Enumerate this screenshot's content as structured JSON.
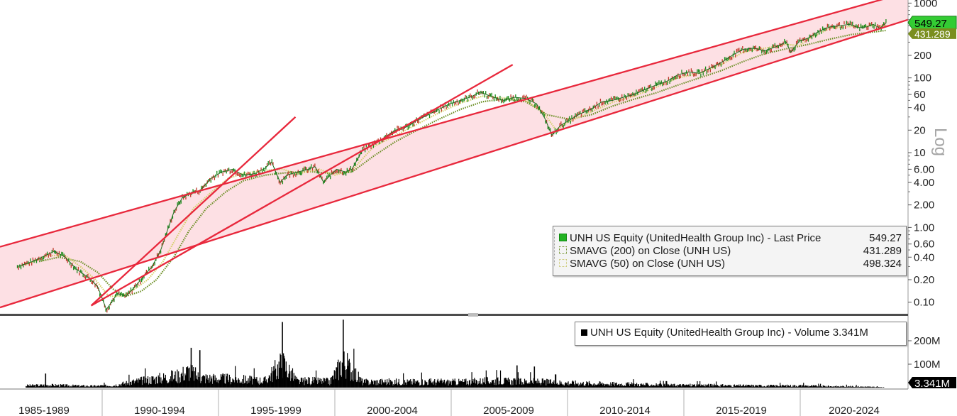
{
  "chart_data": {
    "type": "line",
    "y_scale": "log",
    "y_axis_label": "Log",
    "x_tick_labels": [
      "1985-1989",
      "1990-1994",
      "1995-1999",
      "2000-2004",
      "2005-2009",
      "2010-2014",
      "2015-2019",
      "2020-2024"
    ],
    "price_y_ticks": [
      "1000",
      "200",
      "100",
      "60",
      "40",
      "20",
      "10",
      "6.00",
      "4.00",
      "2.00",
      "1.00",
      "0.60",
      "0.40",
      "0.20",
      "0.10"
    ],
    "price_y_tick_values": [
      1000,
      200,
      100,
      60,
      40,
      20,
      10,
      6,
      4,
      2,
      1,
      0.6,
      0.4,
      0.2,
      0.1
    ],
    "volume_y_ticks": [
      "200M",
      "100M"
    ],
    "volume_y_tick_values": [
      200,
      100
    ],
    "last_price_label": "549.27",
    "sma200_label": "431.289",
    "last_volume_label": "3.341M",
    "series": [
      {
        "name": "UNH US Equity (UnitedHealth Group Inc) - Last Price",
        "value_label": "549.27",
        "color": "#2ca02c",
        "x": [
          1984.6,
          1985.3,
          1986.3,
          1986.8,
          1987.3,
          1988.0,
          1988.3,
          1988.7,
          1989.2,
          1989.6,
          1990.0,
          1990.4,
          1990.8,
          1991.2,
          1991.5,
          1991.8,
          1992.2,
          1992.7,
          1993.0,
          1993.5,
          1994.0,
          1994.5,
          1995.0,
          1995.5,
          1996.0,
          1996.3,
          1996.7,
          1997.0,
          1997.5,
          1998.0,
          1998.3,
          1998.7,
          1999.0,
          1999.3,
          1999.7,
          2000.0,
          2000.5,
          2001.0,
          2001.5,
          2002.0,
          2002.5,
          2003.0,
          2003.5,
          2004.0,
          2004.5,
          2005.0,
          2005.5,
          2005.9,
          2006.5,
          2007.0,
          2007.5,
          2008.0,
          2008.5,
          2008.9,
          2009.2,
          2009.6,
          2010.0,
          2010.5,
          2011.0,
          2011.5,
          2012.0,
          2012.5,
          2013.0,
          2013.5,
          2014.0,
          2014.5,
          2015.0,
          2015.5,
          2016.0,
          2016.5,
          2017.0,
          2017.5,
          2018.0,
          2018.5,
          2019.0,
          2019.5,
          2020.0,
          2020.2,
          2020.6,
          2021.0,
          2021.5,
          2022.0,
          2022.5,
          2022.9,
          2023.3,
          2023.7,
          2024.0,
          2024.3,
          2024.6
        ],
        "values": [
          0.3,
          0.35,
          0.48,
          0.4,
          0.28,
          0.2,
          0.16,
          0.08,
          0.13,
          0.12,
          0.16,
          0.22,
          0.3,
          0.5,
          0.9,
          1.6,
          2.5,
          3.0,
          3.1,
          4.5,
          5.5,
          6.0,
          5.0,
          5.2,
          6.2,
          7.5,
          4.0,
          5.0,
          5.5,
          6.0,
          6.5,
          4.0,
          5.0,
          6.0,
          5.5,
          6.0,
          11,
          13,
          16,
          20,
          22,
          27,
          32,
          38,
          45,
          50,
          56,
          65,
          55,
          50,
          55,
          53,
          45,
          28,
          17,
          23,
          27,
          33,
          38,
          48,
          50,
          55,
          60,
          70,
          80,
          90,
          110,
          120,
          115,
          135,
          160,
          200,
          240,
          250,
          230,
          260,
          300,
          220,
          310,
          340,
          420,
          480,
          500,
          520,
          470,
          480,
          520,
          460,
          549.27
        ]
      },
      {
        "name": "SMAVG (200) on Close (UNH US)",
        "value_label": "431.289",
        "color": "#6b8e23",
        "x": [
          1985.6,
          1986.5,
          1987.5,
          1988.3,
          1989.0,
          1989.6,
          1990.3,
          1991.0,
          1991.8,
          1992.5,
          1993.3,
          1994.2,
          1995.0,
          1996.0,
          1997.0,
          1998.0,
          1999.0,
          2000.0,
          2001.0,
          2002.0,
          2003.0,
          2004.0,
          2005.0,
          2006.0,
          2007.0,
          2008.0,
          2009.0,
          2010.0,
          2011.0,
          2012.0,
          2013.0,
          2014.0,
          2015.0,
          2016.0,
          2017.0,
          2018.0,
          2019.0,
          2020.0,
          2021.0,
          2022.0,
          2023.0,
          2024.0,
          2024.6
        ],
        "values": [
          0.35,
          0.4,
          0.35,
          0.25,
          0.15,
          0.12,
          0.14,
          0.2,
          0.4,
          0.9,
          1.8,
          3.0,
          4.2,
          5.0,
          5.4,
          5.6,
          5.3,
          5.5,
          9.0,
          14,
          20,
          28,
          38,
          48,
          52,
          48,
          32,
          28,
          32,
          42,
          52,
          63,
          80,
          100,
          125,
          165,
          210,
          245,
          280,
          330,
          380,
          410,
          431.289
        ]
      },
      {
        "name": "SMAVG (50) on Close (UNH US)",
        "value_label": "498.324",
        "color": "#d4d06a",
        "x": [
          1985.0,
          1986.0,
          1986.8,
          1987.5,
          1988.2,
          1988.8,
          1989.4,
          1990.0,
          1990.6,
          1991.3,
          1992.0,
          1992.7,
          1993.5,
          1994.3,
          1995.0,
          1996.0,
          1996.8,
          1997.5,
          1998.5,
          1999.2,
          2000.0,
          2001.0,
          2002.0,
          2003.0,
          2004.0,
          2005.0,
          2006.0,
          2007.0,
          2008.0,
          2008.8,
          2009.4,
          2010.0,
          2011.0,
          2012.0,
          2013.0,
          2014.0,
          2015.0,
          2016.0,
          2017.0,
          2018.0,
          2019.0,
          2020.0,
          2020.6,
          2021.0,
          2022.0,
          2023.0,
          2024.0,
          2024.6
        ],
        "values": [
          0.32,
          0.42,
          0.42,
          0.3,
          0.2,
          0.12,
          0.12,
          0.15,
          0.2,
          0.35,
          0.8,
          1.8,
          2.9,
          4.5,
          5.3,
          5.8,
          6.0,
          5.2,
          6.0,
          5.0,
          5.8,
          12,
          17,
          24,
          34,
          46,
          57,
          54,
          50,
          35,
          20,
          26,
          35,
          47,
          57,
          75,
          100,
          115,
          150,
          220,
          250,
          280,
          270,
          330,
          460,
          490,
          500,
          498.324
        ]
      }
    ],
    "volume_series": {
      "name": "UNH US Equity (UnitedHealth Group Inc) - Volume",
      "value_label": "3.341M",
      "unit": "M",
      "x": [
        1985.0,
        1986.0,
        1987.0,
        1988.0,
        1989.0,
        1990.0,
        1991.0,
        1992.0,
        1992.5,
        1993.0,
        1994.0,
        1995.0,
        1996.0,
        1996.8,
        1997.5,
        1998.0,
        1999.0,
        1999.6,
        2000.5,
        2001.5,
        2002.5,
        2003.5,
        2004.5,
        2005.5,
        2006.5,
        2007.5,
        2008.5,
        2009.5,
        2010.5,
        2011.5,
        2012.5,
        2013.5,
        2014.5,
        2015.5,
        2016.5,
        2017.5,
        2018.5,
        2019.5,
        2020.5,
        2021.5,
        2022.5,
        2023.5,
        2024.5
      ],
      "values": [
        20,
        25,
        20,
        15,
        22,
        60,
        90,
        120,
        170,
        100,
        90,
        80,
        70,
        250,
        60,
        70,
        60,
        265,
        55,
        60,
        55,
        60,
        55,
        60,
        70,
        60,
        60,
        50,
        45,
        40,
        35,
        30,
        25,
        25,
        25,
        20,
        20,
        18,
        20,
        15,
        12,
        10,
        3.341
      ]
    },
    "channel": {
      "upper_line": {
        "x": [
          1983.8,
          2025.6
        ],
        "values": [
          0.55,
          1400
        ]
      },
      "lower_line": {
        "x": [
          1983.8,
          2025.6
        ],
        "values": [
          0.085,
          600
        ]
      },
      "trendline_1": {
        "x": [
          1988.0,
          1997.4
        ],
        "values": [
          0.09,
          30
        ]
      },
      "trendline_2": {
        "x": [
          1988.0,
          2007.4
        ],
        "values": [
          0.09,
          150
        ]
      }
    }
  },
  "colors": {
    "channel_fill": "#fde0e4",
    "trend_line": "#e8283c",
    "price_up": "#1e8c1e",
    "price_down": "#c0392b",
    "sma200": "#6b8e23",
    "sma50": "#d4d06a",
    "last_price_tag_bg": "#33cc33",
    "sma200_tag_bg": "#7a8f1f",
    "volume_bar": "#000000"
  },
  "price_legend": {
    "rows": [
      {
        "label": "UNH US Equity (UnitedHealth Group Inc) - Last Price",
        "value": "549.27",
        "swatch": "#22b222"
      },
      {
        "label": "SMAVG (200)  on Close (UNH US)",
        "value": "431.289",
        "swatch": "#ffffff"
      },
      {
        "label": "SMAVG (50)  on Close (UNH US)",
        "value": "498.324",
        "swatch": "#ffffff"
      }
    ]
  },
  "volume_legend": {
    "label": "UNH US Equity (UnitedHealth Group Inc) - Volume 3.341M"
  }
}
